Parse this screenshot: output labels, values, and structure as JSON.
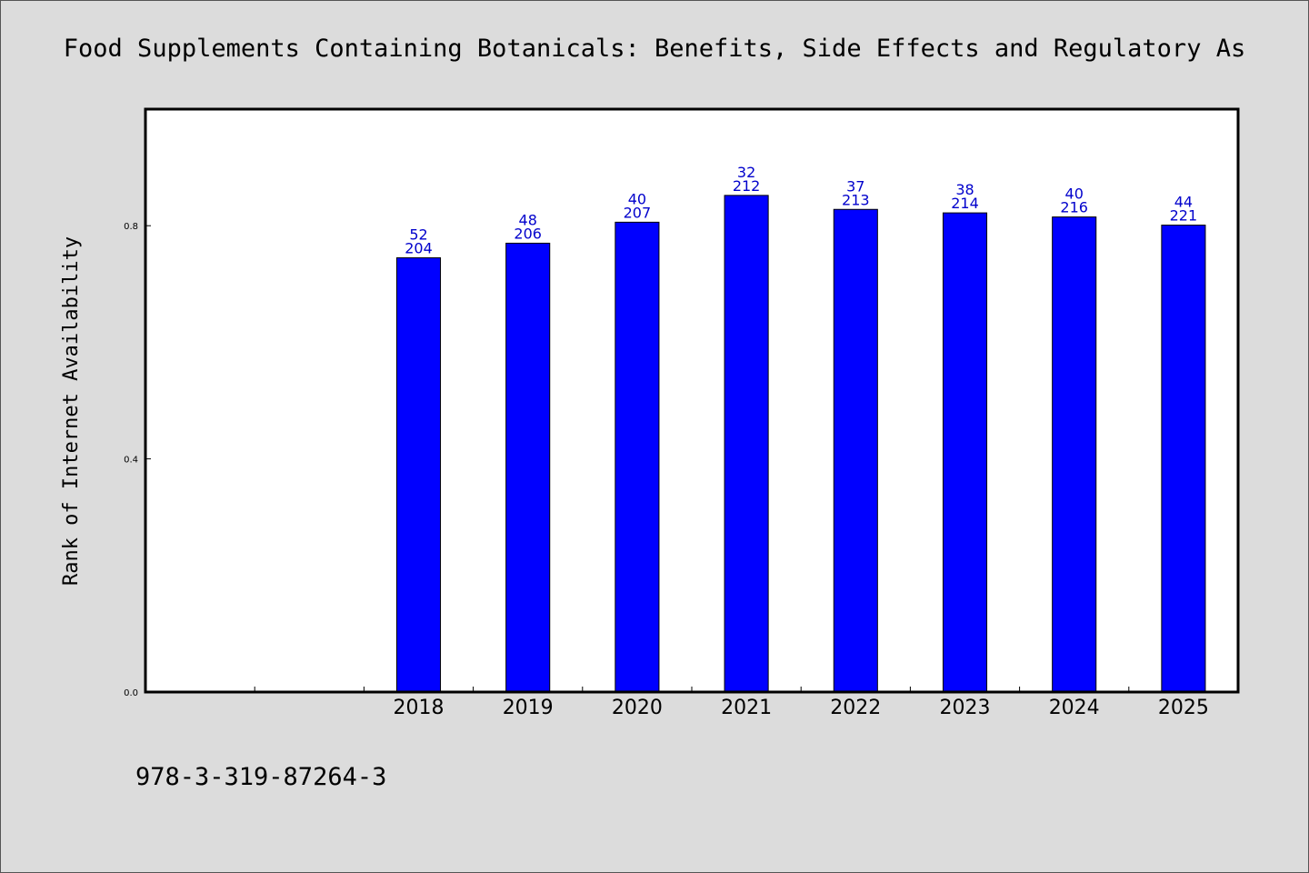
{
  "chart_data": {
    "type": "bar",
    "title": "Food Supplements Containing Botanicals: Benefits, Side Effects and Regulatory As",
    "xlabel": "",
    "ylabel": "Rank of Internet Availability",
    "footer": "978-3-319-87264-3",
    "categories": [
      "",
      "",
      "2018",
      "2019",
      "2020",
      "2021",
      "2022",
      "2023",
      "2024",
      "2025"
    ],
    "values": [
      null,
      null,
      0.745,
      0.77,
      0.806,
      0.852,
      0.828,
      0.822,
      0.815,
      0.801
    ],
    "labels_top": [
      "",
      "",
      "52",
      "48",
      "40",
      "32",
      "37",
      "38",
      "40",
      "44"
    ],
    "labels_bottom": [
      "",
      "",
      "204",
      "206",
      "207",
      "212",
      "213",
      "214",
      "216",
      "221"
    ],
    "ylim": [
      0,
      1.0
    ],
    "yticks": [
      0.0,
      0.4,
      0.8
    ],
    "ytick_labels": [
      "0.0",
      "0.4",
      "0.8"
    ],
    "grid": false,
    "colors": {
      "bar": "#0000ff",
      "bar_edge": "#000000",
      "label": "#0000cc",
      "plot_bg": "#ffffff",
      "page_bg": "#dcdcdc"
    }
  }
}
